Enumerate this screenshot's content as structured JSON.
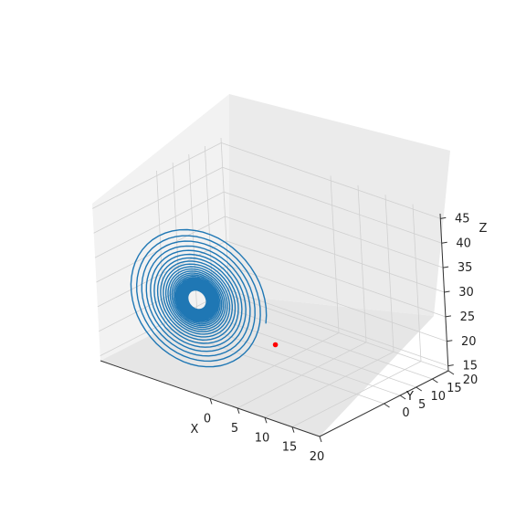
{
  "chart_data": {
    "type": "line",
    "projection": "3d",
    "grid": true,
    "title": "",
    "xlabel": "X",
    "ylabel": "Y",
    "zlabel": "Z",
    "xlim": [
      -20,
      20
    ],
    "ylim": [
      -20,
      20
    ],
    "zlim": [
      14,
      46
    ],
    "x_ticks": [
      "0",
      "5",
      "10",
      "15",
      "20"
    ],
    "y_ticks": [
      "0",
      "5",
      "10",
      "15",
      "20"
    ],
    "z_ticks": [
      "15",
      "20",
      "25",
      "30",
      "35",
      "40",
      "45"
    ],
    "series": [
      {
        "type": "line",
        "color": "#1f77b4",
        "description_only": "spiral trajectory converging to a fixed point near x=-8.5, y=-8.5, z=27",
        "fixed_point": [
          -8.5,
          -8.5,
          27
        ],
        "start_radius": 11.5
      },
      {
        "type": "marker",
        "color": "#ff0000",
        "points": [
          [
            1.0,
            -1.0,
            19.0
          ]
        ]
      }
    ]
  }
}
